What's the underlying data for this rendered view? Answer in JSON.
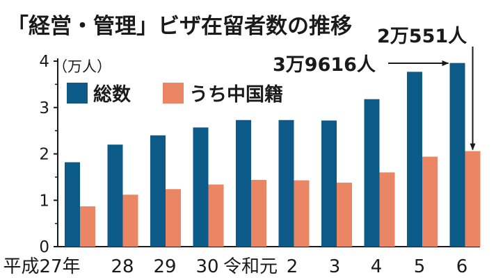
{
  "chart_data": {
    "type": "bar",
    "title": "「経営・管理」ビザ在留者数の推移",
    "unit_label": "（万人）",
    "categories": [
      "平成27年",
      "28",
      "29",
      "30",
      "令和元",
      "2",
      "3",
      "4",
      "5",
      "6"
    ],
    "series": [
      {
        "name": "総数",
        "color": "#0b5a87",
        "values": [
          1.82,
          2.2,
          2.4,
          2.57,
          2.73,
          2.73,
          2.72,
          3.18,
          3.77,
          3.96
        ]
      },
      {
        "name": "うち中国籍",
        "color": "#ea8663",
        "values": [
          0.87,
          1.12,
          1.24,
          1.34,
          1.44,
          1.43,
          1.38,
          1.6,
          1.94,
          2.06
        ]
      }
    ],
    "ylim": [
      0,
      4
    ],
    "yticks": [
      0,
      1,
      2,
      3,
      4
    ],
    "grid": false,
    "legend_position": "top-left",
    "annotations": [
      {
        "text": "2万551人",
        "series": 1,
        "category_index": 9
      },
      {
        "text": "3万9616人",
        "series": 0,
        "category_index": 9
      }
    ]
  }
}
